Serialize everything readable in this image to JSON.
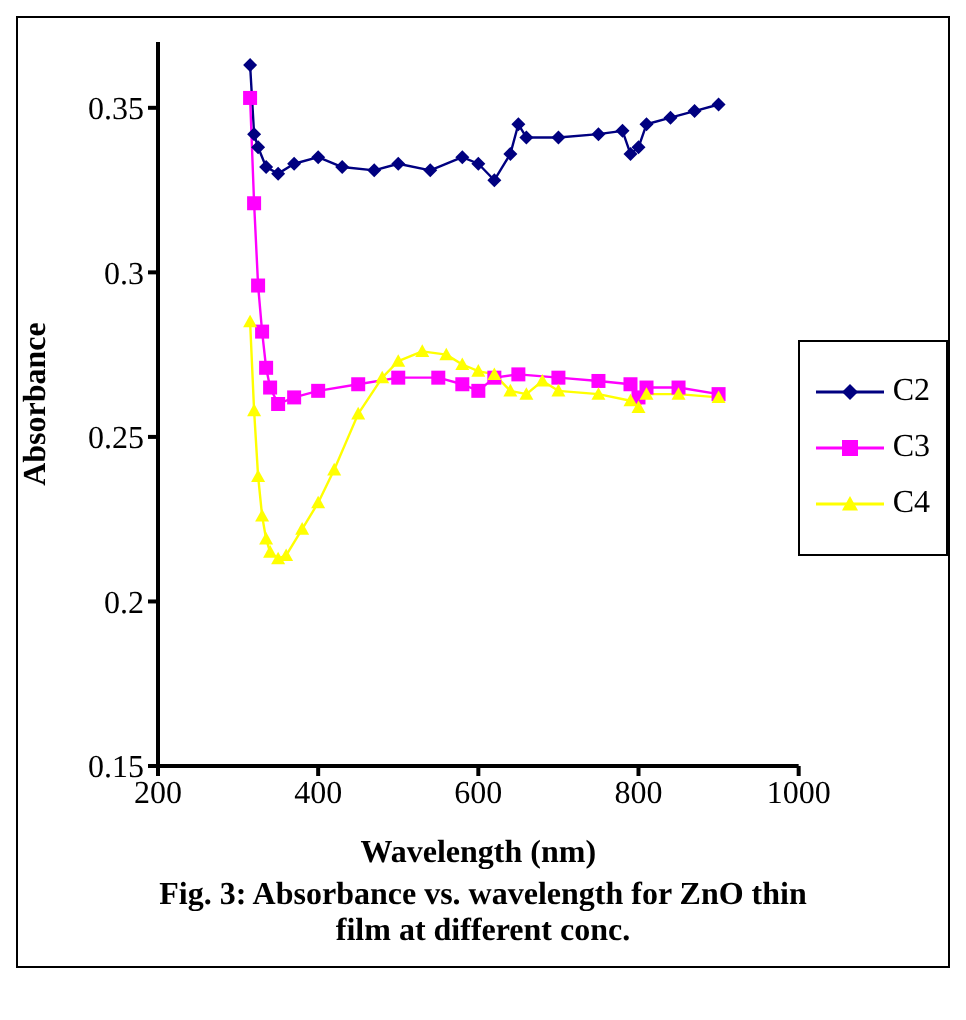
{
  "chart_data": {
    "type": "line",
    "xlabel": "Wavelength (nm)",
    "ylabel": "Absorbance",
    "annotations": [
      "Fig. 3: Absorbance vs. wavelength for ZnO thin film at different conc."
    ],
    "xlim": [
      200,
      1000
    ],
    "xticks": [
      200,
      400,
      600,
      800,
      1000
    ],
    "ylim": [
      0.15,
      0.37
    ],
    "yticks": [
      0.15,
      0.2,
      0.25,
      0.3,
      0.35
    ],
    "grid": false,
    "legend": "right",
    "series": [
      {
        "name": "C2",
        "color": "#000080",
        "marker": "diamond",
        "x": [
          315,
          320,
          325,
          335,
          350,
          370,
          400,
          430,
          470,
          500,
          540,
          580,
          600,
          620,
          640,
          650,
          660,
          700,
          750,
          780,
          790,
          800,
          810,
          840,
          870,
          900
        ],
        "values": [
          0.363,
          0.342,
          0.338,
          0.332,
          0.33,
          0.333,
          0.335,
          0.332,
          0.331,
          0.333,
          0.331,
          0.335,
          0.333,
          0.328,
          0.336,
          0.345,
          0.341,
          0.341,
          0.342,
          0.343,
          0.336,
          0.338,
          0.345,
          0.347,
          0.349,
          0.351
        ]
      },
      {
        "name": "C3",
        "color": "#ff00ff",
        "marker": "square",
        "x": [
          315,
          320,
          325,
          330,
          335,
          340,
          350,
          370,
          400,
          450,
          500,
          550,
          580,
          600,
          620,
          650,
          700,
          750,
          790,
          800,
          810,
          850,
          900
        ],
        "values": [
          0.353,
          0.321,
          0.296,
          0.282,
          0.271,
          0.265,
          0.26,
          0.262,
          0.264,
          0.266,
          0.268,
          0.268,
          0.266,
          0.264,
          0.268,
          0.269,
          0.268,
          0.267,
          0.266,
          0.262,
          0.265,
          0.265,
          0.263
        ]
      },
      {
        "name": "C4",
        "color": "#ffff00",
        "marker": "triangle",
        "x": [
          315,
          320,
          325,
          330,
          335,
          340,
          350,
          360,
          380,
          400,
          420,
          450,
          480,
          500,
          530,
          560,
          580,
          600,
          620,
          640,
          660,
          680,
          700,
          750,
          790,
          800,
          810,
          850,
          900
        ],
        "values": [
          0.285,
          0.258,
          0.238,
          0.226,
          0.219,
          0.215,
          0.213,
          0.214,
          0.222,
          0.23,
          0.24,
          0.257,
          0.268,
          0.273,
          0.276,
          0.275,
          0.272,
          0.27,
          0.269,
          0.264,
          0.263,
          0.267,
          0.264,
          0.263,
          0.261,
          0.259,
          0.263,
          0.263,
          0.262
        ]
      }
    ]
  }
}
